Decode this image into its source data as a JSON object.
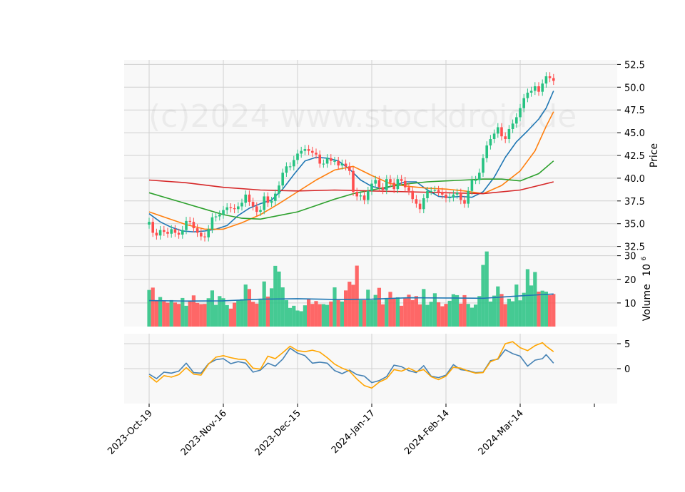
{
  "chart_data": {
    "type": "candlestick",
    "watermark": "(c)2024 www.stockdroid.de",
    "colors": {
      "up": "#26c281",
      "down": "#ff4d4d",
      "ma_fast": "#1f77b4",
      "ma_mid": "#ff7f0e",
      "ma_slow": "#2ca02c",
      "ma_long": "#d62728",
      "volume_avg": "#1f77b4",
      "osc_1": "#4682b4",
      "osc_2": "#ffa500",
      "panel_bg": "#f8f8f8",
      "grid": "#d0d0d0"
    },
    "x_ticks": [
      {
        "index": 0,
        "label": "2023-Oct-19"
      },
      {
        "index": 20,
        "label": "2023-Nov-16"
      },
      {
        "index": 40,
        "label": "2023-Dec-15"
      },
      {
        "index": 60,
        "label": "2024-Jan-17"
      },
      {
        "index": 80,
        "label": "2024-Feb-14"
      },
      {
        "index": 100,
        "label": "2024-Mar-14"
      }
    ],
    "price_panel": {
      "ylabel": "Price",
      "ylim": [
        32.0,
        53.0
      ],
      "ticks": [
        "32.5",
        "35.0",
        "37.5",
        "40.0",
        "42.5",
        "45.0",
        "47.5",
        "50.0",
        "52.5"
      ],
      "tick_values": [
        32.5,
        35.0,
        37.5,
        40.0,
        42.5,
        45.0,
        47.5,
        50.0,
        52.5
      ]
    },
    "volume_panel": {
      "ylabel": "Volume",
      "multiplier": "10",
      "multiplier_exp": "6",
      "ylim": [
        0,
        32
      ],
      "ticks": [
        "10",
        "20",
        "30"
      ],
      "tick_values": [
        10,
        20,
        30
      ]
    },
    "oscillator_panel": {
      "ylim": [
        -7,
        7
      ],
      "ticks": [
        "0",
        "5"
      ],
      "tick_values": [
        0,
        5
      ]
    },
    "closes": [
      35.2,
      34.0,
      33.7,
      34.3,
      34.1,
      33.9,
      34.4,
      34.0,
      33.8,
      34.3,
      35.3,
      35.2,
      34.5,
      34.0,
      33.6,
      33.5,
      34.4,
      35.7,
      35.8,
      36.0,
      36.5,
      36.8,
      36.7,
      36.6,
      36.9,
      37.3,
      38.2,
      37.4,
      36.9,
      36.3,
      36.5,
      38.0,
      37.3,
      37.5,
      38.3,
      39.2,
      40.6,
      41.3,
      41.3,
      42.0,
      42.7,
      43.0,
      43.2,
      43.0,
      42.8,
      42.6,
      41.6,
      41.6,
      42.2,
      41.9,
      41.9,
      41.4,
      41.6,
      41.3,
      40.8,
      38.5,
      38.0,
      38.1,
      37.6,
      38.6,
      39.4,
      39.8,
      39.0,
      38.7,
      39.9,
      39.5,
      38.8,
      39.9,
      39.7,
      39.0,
      38.6,
      37.7,
      37.2,
      36.6,
      37.8,
      38.6,
      38.6,
      38.7,
      38.5,
      38.2,
      37.8,
      37.9,
      38.2,
      38.4,
      37.6,
      37.2,
      38.6,
      39.8,
      39.8,
      40.6,
      42.2,
      43.6,
      44.3,
      44.9,
      45.6,
      44.6,
      44.3,
      45.4,
      46.0,
      46.7,
      47.7,
      48.8,
      49.4,
      49.6,
      50.1,
      49.5,
      50.4,
      51.2,
      51.0,
      50.7
    ],
    "volumes": [
      15.5,
      16.5,
      10.9,
      12.5,
      10.7,
      10.1,
      11.2,
      10.2,
      9.6,
      12.1,
      8.8,
      10.9,
      13.2,
      10.0,
      9.5,
      9.6,
      12.0,
      15.3,
      9.2,
      12.9,
      12.0,
      9.1,
      7.6,
      10.1,
      11.3,
      11.6,
      17.8,
      15.9,
      10.5,
      9.7,
      11.4,
      19.1,
      12.7,
      16.2,
      25.7,
      23.3,
      16.6,
      11.2,
      7.9,
      8.8,
      6.8,
      6.5,
      9.0,
      11.7,
      9.6,
      10.8,
      9.5,
      9.5,
      9.2,
      10.6,
      16.6,
      11.2,
      10.6,
      15.3,
      19.0,
      17.7,
      25.8,
      11.2,
      11.2,
      15.6,
      11.2,
      13.4,
      16.4,
      9.4,
      12.1,
      14.7,
      11.8,
      12.4,
      8.8,
      12.0,
      13.5,
      11.2,
      12.9,
      9.4,
      15.9,
      9.2,
      10.5,
      14.1,
      10.3,
      8.6,
      9.6,
      10.9,
      13.7,
      13.3,
      9.7,
      13.3,
      9.6,
      8.0,
      9.3,
      12.9,
      26.1,
      31.8,
      10.6,
      13.1,
      17.0,
      13.8,
      9.5,
      11.8,
      10.7,
      17.8,
      11.1,
      14.3,
      24.3,
      17.4,
      23.1,
      14.8,
      15.2,
      14.8,
      13.3,
      13.8
    ],
    "overlays": [
      {
        "key": "ma_fast",
        "values": [
          [
            0,
            36.1
          ],
          [
            3,
            35.2
          ],
          [
            6,
            34.6
          ],
          [
            9,
            34.2
          ],
          [
            12,
            34.1
          ],
          [
            15,
            34.2
          ],
          [
            18,
            34.4
          ],
          [
            21,
            34.8
          ],
          [
            24,
            35.9
          ],
          [
            27,
            36.7
          ],
          [
            30,
            37.2
          ],
          [
            33,
            37.6
          ],
          [
            36,
            38.8
          ],
          [
            39,
            40.4
          ],
          [
            42,
            41.9
          ],
          [
            45,
            42.3
          ],
          [
            48,
            42.2
          ],
          [
            51,
            41.9
          ],
          [
            54,
            41.0
          ],
          [
            57,
            39.8
          ],
          [
            60,
            39.1
          ],
          [
            63,
            38.8
          ],
          [
            66,
            39.2
          ],
          [
            69,
            39.6
          ],
          [
            72,
            39.6
          ],
          [
            75,
            38.7
          ],
          [
            78,
            38.0
          ],
          [
            81,
            37.9
          ],
          [
            84,
            38.0
          ],
          [
            87,
            37.9
          ],
          [
            90,
            38.5
          ],
          [
            93,
            40.1
          ],
          [
            96,
            42.3
          ],
          [
            99,
            44.0
          ],
          [
            102,
            45.2
          ],
          [
            105,
            46.5
          ],
          [
            107,
            47.7
          ],
          [
            109,
            49.6
          ]
        ]
      },
      {
        "key": "ma_mid",
        "values": [
          [
            0,
            36.3
          ],
          [
            5,
            35.6
          ],
          [
            10,
            34.9
          ],
          [
            15,
            34.4
          ],
          [
            20,
            34.4
          ],
          [
            25,
            35.1
          ],
          [
            30,
            36.0
          ],
          [
            35,
            37.2
          ],
          [
            40,
            38.5
          ],
          [
            45,
            39.8
          ],
          [
            50,
            40.9
          ],
          [
            55,
            41.3
          ],
          [
            60,
            40.3
          ],
          [
            65,
            39.4
          ],
          [
            70,
            39.1
          ],
          [
            75,
            38.9
          ],
          [
            80,
            38.8
          ],
          [
            85,
            38.6
          ],
          [
            90,
            38.3
          ],
          [
            95,
            39.2
          ],
          [
            100,
            40.8
          ],
          [
            104,
            43.0
          ],
          [
            107,
            45.7
          ],
          [
            109,
            47.3
          ]
        ]
      },
      {
        "key": "ma_slow",
        "values": [
          [
            0,
            38.4
          ],
          [
            5,
            37.8
          ],
          [
            10,
            37.2
          ],
          [
            15,
            36.6
          ],
          [
            20,
            36.0
          ],
          [
            25,
            35.6
          ],
          [
            30,
            35.5
          ],
          [
            35,
            35.9
          ],
          [
            40,
            36.3
          ],
          [
            45,
            37.0
          ],
          [
            50,
            37.7
          ],
          [
            55,
            38.3
          ],
          [
            60,
            38.7
          ],
          [
            65,
            39.1
          ],
          [
            70,
            39.4
          ],
          [
            75,
            39.6
          ],
          [
            80,
            39.7
          ],
          [
            85,
            39.8
          ],
          [
            90,
            39.9
          ],
          [
            95,
            39.9
          ],
          [
            100,
            39.7
          ],
          [
            105,
            40.5
          ],
          [
            109,
            41.9
          ]
        ]
      },
      {
        "key": "ma_long",
        "values": [
          [
            0,
            39.8
          ],
          [
            10,
            39.5
          ],
          [
            20,
            39.0
          ],
          [
            30,
            38.7
          ],
          [
            40,
            38.6
          ],
          [
            50,
            38.7
          ],
          [
            60,
            38.6
          ],
          [
            70,
            38.5
          ],
          [
            80,
            38.4
          ],
          [
            90,
            38.3
          ],
          [
            100,
            38.7
          ],
          [
            109,
            39.6
          ]
        ]
      }
    ],
    "volume_avg": [
      [
        0,
        11.0
      ],
      [
        10,
        10.8
      ],
      [
        20,
        10.9
      ],
      [
        30,
        11.6
      ],
      [
        40,
        11.8
      ],
      [
        50,
        11.5
      ],
      [
        60,
        11.6
      ],
      [
        70,
        12.2
      ],
      [
        80,
        12.1
      ],
      [
        90,
        12.0
      ],
      [
        100,
        13.0
      ],
      [
        109,
        13.8
      ]
    ],
    "oscillator": [
      {
        "key": "osc_1",
        "values": [
          [
            0,
            -1.1
          ],
          [
            2,
            -2.0
          ],
          [
            4,
            -0.7
          ],
          [
            6,
            -0.9
          ],
          [
            8,
            -0.5
          ],
          [
            10,
            1.1
          ],
          [
            12,
            -0.8
          ],
          [
            14,
            -0.9
          ],
          [
            16,
            1.0
          ],
          [
            18,
            1.8
          ],
          [
            20,
            2.0
          ],
          [
            22,
            1.0
          ],
          [
            24,
            1.4
          ],
          [
            26,
            1.1
          ],
          [
            28,
            -0.7
          ],
          [
            30,
            -0.3
          ],
          [
            32,
            1.1
          ],
          [
            34,
            0.5
          ],
          [
            36,
            1.9
          ],
          [
            38,
            4.1
          ],
          [
            40,
            3.1
          ],
          [
            42,
            2.6
          ],
          [
            44,
            1.1
          ],
          [
            46,
            1.3
          ],
          [
            48,
            1.1
          ],
          [
            50,
            -0.4
          ],
          [
            52,
            -1.0
          ],
          [
            54,
            -0.3
          ],
          [
            56,
            -1.2
          ],
          [
            58,
            -1.5
          ],
          [
            60,
            -2.8
          ],
          [
            62,
            -2.4
          ],
          [
            64,
            -1.6
          ],
          [
            66,
            0.7
          ],
          [
            68,
            0.4
          ],
          [
            70,
            -0.4
          ],
          [
            72,
            -0.8
          ],
          [
            74,
            0.6
          ],
          [
            76,
            -1.5
          ],
          [
            78,
            -1.8
          ],
          [
            80,
            -1.3
          ],
          [
            82,
            0.8
          ],
          [
            84,
            -0.2
          ],
          [
            86,
            -0.4
          ],
          [
            88,
            -0.8
          ],
          [
            90,
            -0.7
          ],
          [
            92,
            1.6
          ],
          [
            94,
            1.9
          ],
          [
            96,
            3.8
          ],
          [
            98,
            3.0
          ],
          [
            100,
            2.5
          ],
          [
            102,
            0.5
          ],
          [
            104,
            1.7
          ],
          [
            106,
            2.0
          ],
          [
            107,
            2.8
          ],
          [
            109,
            1.1
          ]
        ]
      },
      {
        "key": "osc_2",
        "values": [
          [
            0,
            -1.5
          ],
          [
            2,
            -2.7
          ],
          [
            4,
            -1.4
          ],
          [
            6,
            -1.7
          ],
          [
            8,
            -1.2
          ],
          [
            10,
            0.2
          ],
          [
            12,
            -1.1
          ],
          [
            14,
            -1.3
          ],
          [
            16,
            0.9
          ],
          [
            18,
            2.3
          ],
          [
            20,
            2.6
          ],
          [
            22,
            2.2
          ],
          [
            24,
            1.9
          ],
          [
            26,
            1.8
          ],
          [
            28,
            0.1
          ],
          [
            30,
            -0.1
          ],
          [
            32,
            2.5
          ],
          [
            34,
            2.0
          ],
          [
            36,
            3.2
          ],
          [
            38,
            4.5
          ],
          [
            40,
            3.6
          ],
          [
            42,
            3.4
          ],
          [
            44,
            3.7
          ],
          [
            46,
            3.3
          ],
          [
            48,
            2.2
          ],
          [
            50,
            0.9
          ],
          [
            52,
            0.1
          ],
          [
            54,
            -0.5
          ],
          [
            56,
            -2.1
          ],
          [
            58,
            -3.4
          ],
          [
            60,
            -3.9
          ],
          [
            62,
            -2.7
          ],
          [
            64,
            -2.0
          ],
          [
            66,
            -0.2
          ],
          [
            68,
            -0.5
          ],
          [
            70,
            0.1
          ],
          [
            72,
            -0.6
          ],
          [
            74,
            -0.2
          ],
          [
            76,
            -1.6
          ],
          [
            78,
            -2.2
          ],
          [
            80,
            -1.5
          ],
          [
            82,
            0.3
          ],
          [
            84,
            0.1
          ],
          [
            86,
            -0.5
          ],
          [
            88,
            -0.9
          ],
          [
            90,
            -0.8
          ],
          [
            92,
            1.4
          ],
          [
            94,
            2.0
          ],
          [
            96,
            5.0
          ],
          [
            98,
            5.4
          ],
          [
            100,
            4.2
          ],
          [
            102,
            3.6
          ],
          [
            104,
            4.6
          ],
          [
            106,
            5.2
          ],
          [
            107,
            4.5
          ],
          [
            109,
            3.4
          ]
        ]
      }
    ]
  }
}
